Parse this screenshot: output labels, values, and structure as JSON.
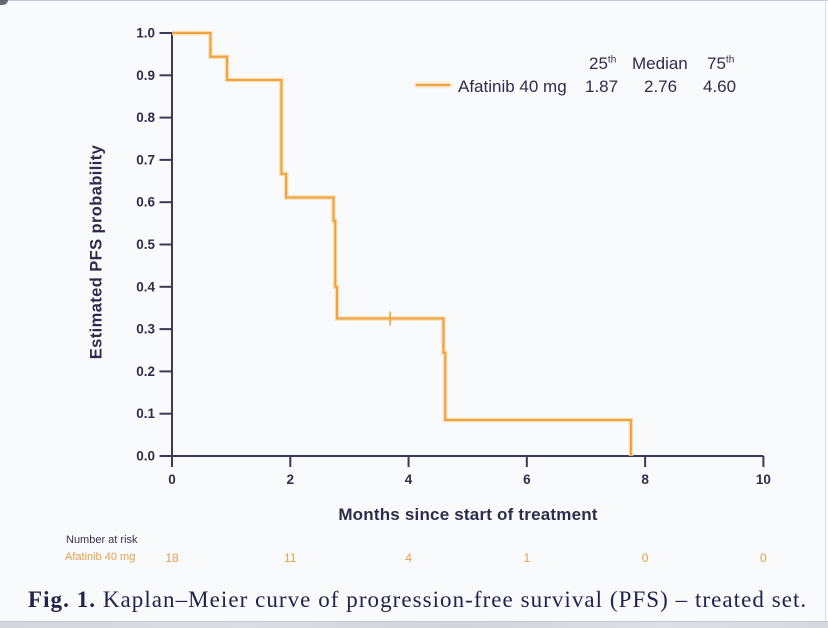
{
  "page": {
    "background": "#f8fafc"
  },
  "colors": {
    "accent_orange": "#efa23e",
    "orange_halo": "#f6d9a6",
    "axis_dark": "#3a3a57",
    "text_dark": "#2d2d4b",
    "risk_orange": "#e2a148",
    "caption_dark": "#22224e"
  },
  "chart_data": {
    "type": "line",
    "subtype": "kaplan-meier-step-curve",
    "title": "",
    "xlabel": "Months since start of treatment",
    "ylabel": "Estimated PFS probability",
    "xlim": [
      0,
      10
    ],
    "ylim": [
      0.0,
      1.0
    ],
    "xticks": [
      "0",
      "2",
      "4",
      "6",
      "8",
      "10"
    ],
    "yticks": [
      "1.0",
      "0.9",
      "0.8",
      "0.7",
      "0.6",
      "0.5",
      "0.4",
      "0.3",
      "0.2",
      "0.1",
      "0.0"
    ],
    "grid": false,
    "legend_position": "top-right",
    "series": [
      {
        "name": "Afatinib 40 mg",
        "color": "#efa23e",
        "step": "post",
        "points": [
          [
            0,
            1.0
          ],
          [
            0.65,
            0.944
          ],
          [
            0.93,
            0.889
          ],
          [
            1.85,
            0.667
          ],
          [
            1.93,
            0.611
          ],
          [
            2.73,
            0.556
          ],
          [
            2.76,
            0.4
          ],
          [
            2.79,
            0.325
          ],
          [
            4.59,
            0.244
          ],
          [
            4.62,
            0.085
          ],
          [
            7.76,
            0.0
          ]
        ],
        "censor_marks": [
          [
            3.69,
            0.325
          ]
        ],
        "quartiles": {
          "p25": "1.87",
          "median": "2.76",
          "p75": "4.60"
        }
      }
    ]
  },
  "legend": {
    "header": [
      {
        "base": "25",
        "sup": "th"
      },
      {
        "base": "Median",
        "sup": ""
      },
      {
        "base": "75",
        "sup": "th"
      }
    ],
    "row": {
      "label": "Afatinib 40 mg",
      "p25": "1.87",
      "median": "2.76",
      "p75": "4.60"
    }
  },
  "number_at_risk": {
    "title": "Number at risk",
    "row_label": "Afatinib 40 mg",
    "counts": [
      "18",
      "11",
      "4",
      "1",
      "0",
      "0"
    ]
  },
  "caption": {
    "label": "Fig. 1.",
    "text": "Kaplan–Meier curve of progression-free survival (PFS) – treated set."
  }
}
